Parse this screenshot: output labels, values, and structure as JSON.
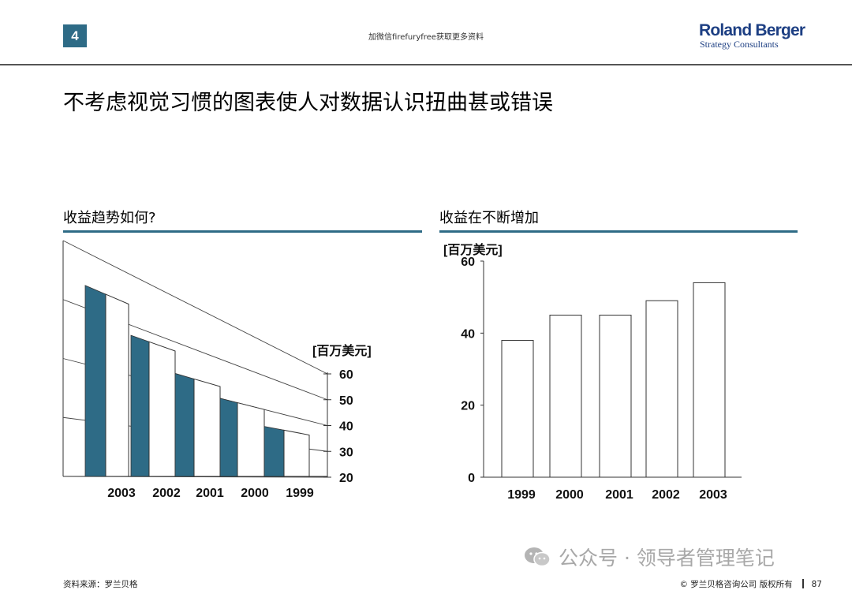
{
  "header": {
    "page_number": "4",
    "watermark": "加微信firefuryfree获取更多资料",
    "brand_name": "Roland Berger",
    "brand_sub": "Strategy Consultants"
  },
  "headline": "不考虑视觉习惯的图表使人对数据认识扭曲甚或错误",
  "chart_data": [
    {
      "type": "bar",
      "title": "收益趋势如何?",
      "ylabel": "[百万美元]",
      "categories": [
        "2003",
        "2002",
        "2001",
        "2000",
        "1999"
      ],
      "values": [
        54,
        48,
        43,
        40,
        35
      ],
      "ylim": [
        20,
        60
      ],
      "yticks": [
        60,
        50,
        40,
        30,
        20
      ],
      "style": "3d-perspective",
      "grid": true,
      "colors": {
        "bar_front": "#ffffff",
        "bar_side": "#2e6b86",
        "edge": "#333333"
      }
    },
    {
      "type": "bar",
      "title": "收益在不断增加",
      "ylabel": "[百万美元]",
      "categories": [
        "1999",
        "2000",
        "2001",
        "2002",
        "2003"
      ],
      "values": [
        38,
        45,
        45,
        49,
        54
      ],
      "ylim": [
        0,
        60
      ],
      "yticks": [
        60,
        40,
        20,
        0
      ],
      "grid": false,
      "colors": {
        "bar_front": "#ffffff",
        "edge": "#333333"
      }
    }
  ],
  "footer": {
    "source": "资料来源：罗兰贝格",
    "copyright": "© 罗兰贝格咨询公司 版权所有",
    "page": "87"
  },
  "social_watermark": "公众号 · 领导者管理笔记",
  "icons": {
    "social": "wechat-icon"
  }
}
